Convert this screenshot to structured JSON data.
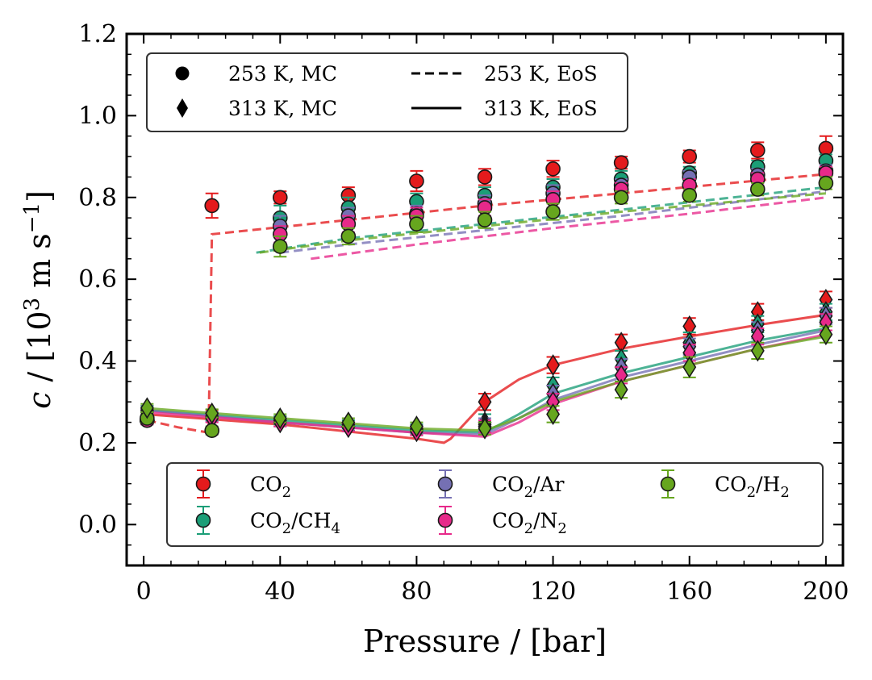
{
  "chart_data": {
    "type": "scatter",
    "xlabel": "Pressure / [bar]",
    "ylabel_parts": {
      "var": "c",
      "pre": " / [10",
      "exp1": "3",
      "mid": " m s",
      "exp2": "−1",
      "post": "]"
    },
    "xlim": [
      -5,
      205
    ],
    "ylim": [
      -0.1,
      1.2
    ],
    "xticks": [
      0,
      40,
      80,
      120,
      160,
      200
    ],
    "xtick_labels": [
      "0",
      "40",
      "80",
      "120",
      "160",
      "200"
    ],
    "yticks": [
      0.0,
      0.2,
      0.4,
      0.6,
      0.8,
      1.0,
      1.2
    ],
    "ytick_labels": [
      "0.0",
      "0.2",
      "0.4",
      "0.6",
      "0.8",
      "1.0",
      "1.2"
    ],
    "grid": false,
    "style_legend": {
      "position": "top-left",
      "entries": [
        {
          "label": "253 K, MC",
          "symbol": "circle"
        },
        {
          "label": "313 K, MC",
          "symbol": "diamond"
        },
        {
          "label": "253 K, EoS",
          "symbol": "dashed"
        },
        {
          "label": "313 K, EoS",
          "symbol": "solid"
        }
      ]
    },
    "series_legend": {
      "position": "bottom"
    },
    "series": [
      {
        "name": "CO2",
        "base": "CO",
        "sub1": "2",
        "slash": "",
        "sub2": "",
        "color": "#e41a1c",
        "mc_253": {
          "x": [
            1,
            20,
            40,
            60,
            80,
            100,
            120,
            140,
            160,
            180,
            200
          ],
          "y": [
            0.255,
            0.78,
            0.8,
            0.805,
            0.84,
            0.85,
            0.87,
            0.885,
            0.9,
            0.915,
            0.92
          ],
          "err": [
            0.01,
            0.03,
            0.015,
            0.02,
            0.025,
            0.02,
            0.02,
            0.015,
            0.015,
            0.02,
            0.03
          ]
        },
        "mc_313": {
          "x": [
            1,
            20,
            40,
            60,
            80,
            100,
            120,
            140,
            160,
            180,
            200
          ],
          "y": [
            0.28,
            0.27,
            0.255,
            0.24,
            0.23,
            0.3,
            0.39,
            0.445,
            0.485,
            0.52,
            0.55
          ],
          "err": [
            0.01,
            0.01,
            0.01,
            0.01,
            0.01,
            0.02,
            0.02,
            0.02,
            0.02,
            0.02,
            0.02
          ]
        },
        "eos_253": {
          "x": [
            1,
            10,
            19,
            19.5,
            20,
            60,
            100,
            140,
            200
          ],
          "y": [
            0.255,
            0.238,
            0.225,
            0.46,
            0.71,
            0.745,
            0.78,
            0.81,
            0.857
          ]
        },
        "eos_313": {
          "x": [
            0,
            40,
            80,
            88,
            90,
            95,
            100,
            110,
            120,
            140,
            160,
            180,
            200
          ],
          "y": [
            0.27,
            0.245,
            0.21,
            0.2,
            0.21,
            0.255,
            0.3,
            0.355,
            0.39,
            0.43,
            0.46,
            0.488,
            0.513
          ]
        }
      },
      {
        "name": "CO2/CH4",
        "base": "CO",
        "sub1": "2",
        "slash": "/CH",
        "sub2": "4",
        "color": "#1b9e77",
        "mc_253": {
          "x": [
            1,
            40,
            60,
            80,
            100,
            120,
            140,
            160,
            180,
            200
          ],
          "y": [
            0.255,
            0.75,
            0.775,
            0.79,
            0.805,
            0.825,
            0.845,
            0.86,
            0.875,
            0.89
          ],
          "err": [
            0.01,
            0.03,
            0.025,
            0.02,
            0.02,
            0.02,
            0.02,
            0.015,
            0.015,
            0.015
          ]
        },
        "mc_313": {
          "x": [
            1,
            20,
            40,
            60,
            80,
            100,
            120,
            140,
            160,
            180,
            200
          ],
          "y": [
            0.28,
            0.265,
            0.255,
            0.245,
            0.235,
            0.25,
            0.34,
            0.405,
            0.445,
            0.49,
            0.52
          ],
          "err": [
            0.01,
            0.01,
            0.01,
            0.01,
            0.01,
            0.02,
            0.02,
            0.02,
            0.025,
            0.02,
            0.02
          ]
        },
        "eos_253": {
          "x": [
            33,
            60,
            100,
            140,
            200
          ],
          "y": [
            0.665,
            0.7,
            0.735,
            0.77,
            0.825
          ]
        },
        "eos_313": {
          "x": [
            0,
            40,
            80,
            100,
            110,
            120,
            140,
            160,
            180,
            200
          ],
          "y": [
            0.28,
            0.255,
            0.23,
            0.225,
            0.27,
            0.32,
            0.37,
            0.41,
            0.45,
            0.48
          ]
        }
      },
      {
        "name": "CO2/Ar",
        "base": "CO",
        "sub1": "2",
        "slash": "/Ar",
        "sub2": "",
        "color": "#7570b3",
        "mc_253": {
          "x": [
            1,
            40,
            60,
            80,
            100,
            120,
            140,
            160,
            180,
            200
          ],
          "y": [
            0.255,
            0.73,
            0.755,
            0.76,
            0.785,
            0.81,
            0.83,
            0.85,
            0.855,
            0.865
          ],
          "err": [
            0.01,
            0.025,
            0.02,
            0.02,
            0.02,
            0.02,
            0.015,
            0.015,
            0.015,
            0.015
          ]
        },
        "mc_313": {
          "x": [
            1,
            20,
            40,
            60,
            80,
            100,
            120,
            140,
            160,
            180,
            200
          ],
          "y": [
            0.275,
            0.262,
            0.25,
            0.24,
            0.232,
            0.245,
            0.32,
            0.385,
            0.435,
            0.475,
            0.51
          ],
          "err": [
            0.01,
            0.01,
            0.01,
            0.01,
            0.01,
            0.015,
            0.02,
            0.02,
            0.02,
            0.02,
            0.02
          ]
        },
        "eos_253": {
          "x": [
            40,
            60,
            100,
            140,
            200
          ],
          "y": [
            0.665,
            0.685,
            0.72,
            0.755,
            0.815
          ]
        },
        "eos_313": {
          "x": [
            0,
            40,
            80,
            100,
            110,
            120,
            140,
            160,
            180,
            200
          ],
          "y": [
            0.28,
            0.25,
            0.225,
            0.22,
            0.26,
            0.305,
            0.36,
            0.4,
            0.44,
            0.475
          ]
        }
      },
      {
        "name": "CO2/N2",
        "base": "CO",
        "sub1": "2",
        "slash": "/N",
        "sub2": "2",
        "color": "#e7298a",
        "mc_253": {
          "x": [
            1,
            40,
            60,
            80,
            100,
            120,
            140,
            160,
            180,
            200
          ],
          "y": [
            0.255,
            0.71,
            0.735,
            0.755,
            0.775,
            0.795,
            0.82,
            0.83,
            0.845,
            0.86
          ],
          "err": [
            0.01,
            0.02,
            0.02,
            0.02,
            0.02,
            0.02,
            0.015,
            0.015,
            0.015,
            0.015
          ]
        },
        "mc_313": {
          "x": [
            1,
            20,
            40,
            60,
            80,
            100,
            120,
            140,
            160,
            180,
            200
          ],
          "y": [
            0.275,
            0.26,
            0.25,
            0.238,
            0.228,
            0.24,
            0.3,
            0.365,
            0.42,
            0.46,
            0.495
          ],
          "err": [
            0.01,
            0.01,
            0.01,
            0.01,
            0.01,
            0.015,
            0.02,
            0.02,
            0.02,
            0.02,
            0.02
          ]
        },
        "eos_253": {
          "x": [
            49,
            80,
            120,
            160,
            200
          ],
          "y": [
            0.65,
            0.685,
            0.725,
            0.76,
            0.8
          ]
        },
        "eos_313": {
          "x": [
            0,
            40,
            80,
            100,
            110,
            120,
            140,
            160,
            180,
            200
          ],
          "y": [
            0.275,
            0.25,
            0.225,
            0.215,
            0.25,
            0.295,
            0.35,
            0.39,
            0.43,
            0.465
          ]
        }
      },
      {
        "name": "CO2/H2",
        "base": "CO",
        "sub1": "2",
        "slash": "/H",
        "sub2": "2",
        "color": "#66a61e",
        "mc_253": {
          "x": [
            1,
            20,
            40,
            60,
            80,
            100,
            120,
            140,
            160,
            180,
            200
          ],
          "y": [
            0.26,
            0.23,
            0.68,
            0.705,
            0.735,
            0.745,
            0.765,
            0.8,
            0.805,
            0.82,
            0.835
          ],
          "err": [
            0.01,
            0.01,
            0.025,
            0.02,
            0.02,
            0.02,
            0.02,
            0.015,
            0.015,
            0.015,
            0.015
          ]
        },
        "mc_313": {
          "x": [
            1,
            20,
            40,
            60,
            80,
            100,
            120,
            140,
            160,
            180,
            200
          ],
          "y": [
            0.285,
            0.272,
            0.26,
            0.25,
            0.24,
            0.235,
            0.27,
            0.33,
            0.385,
            0.425,
            0.465
          ],
          "err": [
            0.01,
            0.01,
            0.01,
            0.01,
            0.01,
            0.015,
            0.02,
            0.02,
            0.025,
            0.02,
            0.02
          ]
        },
        "eos_253": {
          "x": [
            34,
            60,
            100,
            140,
            200
          ],
          "y": [
            0.665,
            0.695,
            0.73,
            0.765,
            0.81
          ]
        },
        "eos_313": {
          "x": [
            0,
            40,
            80,
            100,
            110,
            120,
            140,
            160,
            180,
            200
          ],
          "y": [
            0.285,
            0.26,
            0.235,
            0.23,
            0.26,
            0.3,
            0.35,
            0.39,
            0.43,
            0.46
          ]
        }
      }
    ]
  }
}
